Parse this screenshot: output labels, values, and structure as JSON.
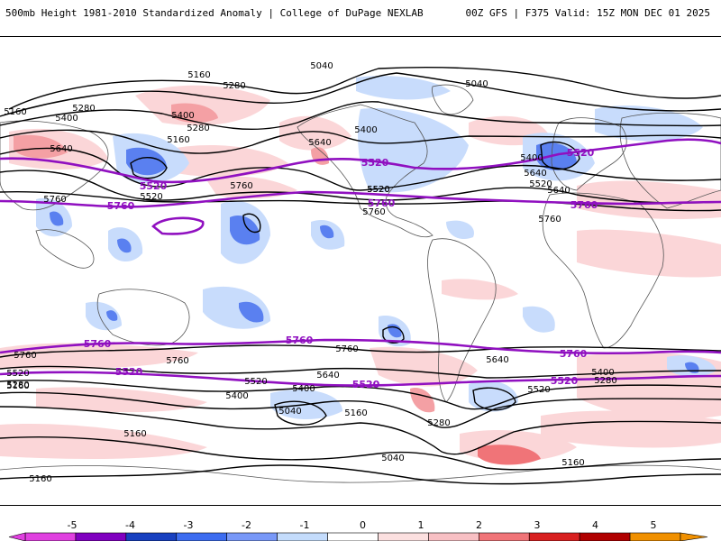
{
  "header": {
    "left": "500mb Height 1981-2010 Standardized Anomaly | College of DuPage NEXLAB",
    "right": "00Z GFS | F375 Valid: 15Z MON DEC 01 2025"
  },
  "colorbar": {
    "ticks": [
      "-5",
      "-4",
      "-3",
      "-2",
      "-1",
      "0",
      "1",
      "2",
      "3",
      "4",
      "5"
    ],
    "colors": [
      "#e040e0",
      "#8000c0",
      "#1840c0",
      "#3c6cf0",
      "#7898f8",
      "#c4dcfc",
      "#ffffff",
      "#fce0e0",
      "#f8c0c4",
      "#f07478",
      "#d82020",
      "#b00000",
      "#f09000"
    ]
  },
  "contours": {
    "black_labels": [
      "5160",
      "5280",
      "5400",
      "5040",
      "5040",
      "5160",
      "5280",
      "5400",
      "5640",
      "5160",
      "5280",
      "5400",
      "5520",
      "5640",
      "5520",
      "5760",
      "5760",
      "5400",
      "5520",
      "5640",
      "5760",
      "5760",
      "5520",
      "5640",
      "5760",
      "5160",
      "5280",
      "5400",
      "5520",
      "5640",
      "5760",
      "5760",
      "5520",
      "5640",
      "5400",
      "5160",
      "5280",
      "5040",
      "5160",
      "5040",
      "5520",
      "5280",
      "5400",
      "5160",
      "5160"
    ],
    "purple_labels": [
      "5520",
      "5760",
      "5520",
      "5760",
      "5520",
      "5760",
      "5760",
      "5520",
      "5760",
      "5520",
      "5760",
      "5520"
    ]
  },
  "colors": {
    "contour": "#000000",
    "highlight_contour": "#9010c0",
    "positive_anomaly": "#f8c8cc",
    "negative_anomaly": "#c8dcfc"
  }
}
